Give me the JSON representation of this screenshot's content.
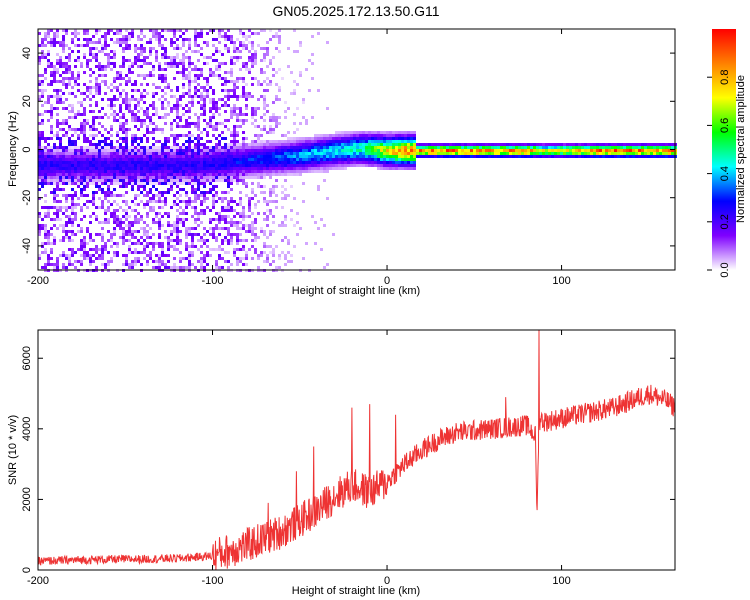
{
  "title": "GN05.2025.172.13.50.G11",
  "chart_data": [
    {
      "type": "heatmap",
      "xlabel": "Height of straight line (km)",
      "ylabel": "Frequency (Hz)",
      "xlim": [
        -200,
        165
      ],
      "ylim": [
        -50,
        50
      ],
      "xticks": [
        -200,
        -100,
        0,
        100
      ],
      "yticks": [
        -40,
        -20,
        0,
        20,
        40
      ],
      "colorbar": {
        "label": "Normalized spectral amplitude",
        "range": [
          0,
          1
        ],
        "ticks": [
          0.0,
          0.2,
          0.4,
          0.6,
          0.8
        ],
        "tick_labels": [
          "0.0",
          "0.2",
          "0.4",
          "0.6",
          "0.8"
        ],
        "colormap": [
          "#ffffff",
          "#7f00ff",
          "#0000ff",
          "#00ffff",
          "#00ff00",
          "#ffff00",
          "#ff8000",
          "#ff0000"
        ]
      },
      "ridge": {
        "description_points_x": [
          -110,
          -80,
          -50,
          -30,
          -15,
          0,
          10,
          20,
          40,
          80,
          90,
          120,
          165
        ],
        "frequency": [
          -6,
          -4,
          -2,
          0,
          1,
          0,
          0,
          0,
          0,
          0,
          0,
          0,
          0
        ],
        "amplitude": [
          0.25,
          0.3,
          0.4,
          0.45,
          0.5,
          0.75,
          0.85,
          0.9,
          0.9,
          0.9,
          0.7,
          0.9,
          0.9
        ]
      },
      "noise_region": {
        "x_from": -200,
        "x_to": -90,
        "amplitude": 0.15
      }
    },
    {
      "type": "line",
      "xlabel": "Height of straight line (km)",
      "ylabel": "SNR (10 * v/v)",
      "xlim": [
        -200,
        165
      ],
      "ylim": [
        0,
        6800
      ],
      "xticks": [
        -200,
        -100,
        0,
        100
      ],
      "yticks": [
        0,
        2000,
        4000,
        6000
      ],
      "color": "#ee3333",
      "series": [
        {
          "x": [
            -200,
            -180,
            -160,
            -140,
            -120,
            -100,
            -90,
            -80,
            -70,
            -60,
            -50,
            -40,
            -30,
            -20,
            -10,
            0,
            10,
            20,
            30,
            40,
            50,
            60,
            70,
            80,
            85,
            86,
            87,
            88,
            90,
            100,
            110,
            120,
            130,
            140,
            150,
            160,
            165
          ],
          "values": [
            250,
            280,
            300,
            310,
            330,
            400,
            550,
            700,
            900,
            1100,
            1400,
            1700,
            2100,
            2400,
            2200,
            2500,
            3000,
            3400,
            3700,
            3900,
            3950,
            4000,
            4050,
            4100,
            3800,
            1500,
            4200,
            4300,
            4200,
            4300,
            4400,
            4500,
            4600,
            4800,
            5000,
            4800,
            4600
          ]
        }
      ],
      "spikes": [
        {
          "x": -68,
          "y": 1900
        },
        {
          "x": -52,
          "y": 2800
        },
        {
          "x": -42,
          "y": 3500
        },
        {
          "x": -20,
          "y": 4600
        },
        {
          "x": -10,
          "y": 4700
        },
        {
          "x": 5,
          "y": 4400
        },
        {
          "x": 68,
          "y": 4900
        },
        {
          "x": 87,
          "y": 6800
        }
      ]
    }
  ]
}
